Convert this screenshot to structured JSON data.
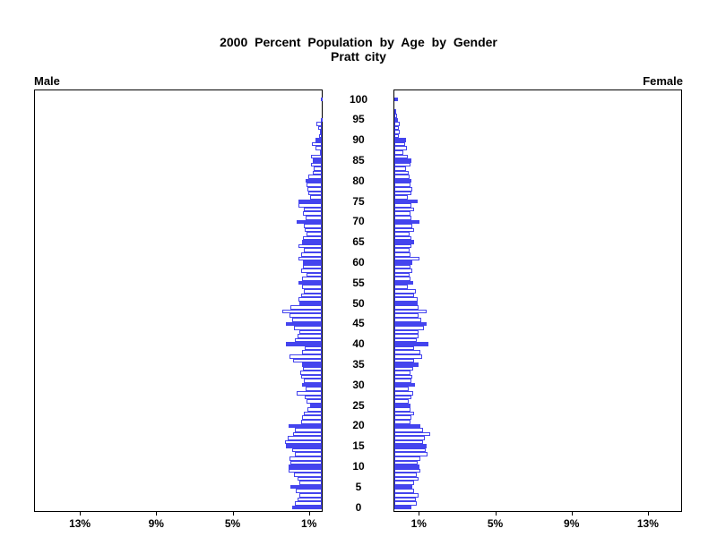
{
  "colors": {
    "bar_outline": "#4444ee",
    "bar_fill_highlight": "#4444ee",
    "bar_fill_regular": "#ffffff",
    "axis": "#000000",
    "text": "#000000",
    "background": "#ffffff"
  },
  "chart_data": {
    "type": "bar",
    "variant": "population-pyramid",
    "title": "2000 Percent Population by Age by Gender",
    "subtitle": "Pratt city",
    "left_panel_label": "Male",
    "right_panel_label": "Female",
    "orientation": "horizontal-mirrored",
    "unit": "% of population",
    "highlight_every_n_years": 5,
    "age_axis": {
      "min": 0,
      "max": 100,
      "tick_labels": [
        "0",
        "5",
        "10",
        "15",
        "20",
        "25",
        "30",
        "35",
        "40",
        "45",
        "50",
        "55",
        "60",
        "65",
        "70",
        "75",
        "80",
        "85",
        "90",
        "95",
        "100"
      ]
    },
    "x_axis": {
      "tick_values": [
        1,
        5,
        9,
        13
      ],
      "left_tick_labels": [
        "13%",
        "9%",
        "5%",
        "1%"
      ],
      "right_tick_labels": [
        "1%",
        "5%",
        "9%",
        "13%"
      ],
      "max_percent": 15,
      "grid": false
    },
    "ages": "index of values arrays = single year of age, 0 through 100",
    "series": [
      {
        "name": "Male",
        "direction": "left",
        "values": [
          1.56,
          1.41,
          1.28,
          1.17,
          1.36,
          1.64,
          1.17,
          1.25,
          1.44,
          1.75,
          1.72,
          1.64,
          1.67,
          1.41,
          1.56,
          1.88,
          1.91,
          1.8,
          1.52,
          1.41,
          1.72,
          1.09,
          1.02,
          0.94,
          0.75,
          0.63,
          0.81,
          0.89,
          1.33,
          0.86,
          1.05,
          0.95,
          1.09,
          1.14,
          0.97,
          1.02,
          1.52,
          1.67,
          1.05,
          0.9,
          1.88,
          1.41,
          1.28,
          1.17,
          1.45,
          1.88,
          1.56,
          1.67,
          2.07,
          1.64,
          1.17,
          1.2,
          1.1,
          0.92,
          1.05,
          1.2,
          1.02,
          0.81,
          1.06,
          1.0,
          1.0,
          1.2,
          1.09,
          0.92,
          1.2,
          1.05,
          1.0,
          0.81,
          0.89,
          0.92,
          1.31,
          0.86,
          1.0,
          0.92,
          1.2,
          1.2,
          0.59,
          0.7,
          0.75,
          0.78,
          0.86,
          0.7,
          0.48,
          0.41,
          0.55,
          0.47,
          0.56,
          0.09,
          0.33,
          0.52,
          0.33,
          0.16,
          0.08,
          0.2,
          0.28,
          0.05,
          0.0,
          0.0,
          0.0,
          0.0,
          0.05
        ]
      },
      {
        "name": "Female",
        "direction": "right",
        "values": [
          0.89,
          1.17,
          1.13,
          1.28,
          1.02,
          0.92,
          1.05,
          1.28,
          1.17,
          1.36,
          1.33,
          1.2,
          1.36,
          1.75,
          1.64,
          1.71,
          1.52,
          1.6,
          1.86,
          1.52,
          1.36,
          0.86,
          0.89,
          1.02,
          0.86,
          0.86,
          0.73,
          0.89,
          0.97,
          0.73,
          1.1,
          0.89,
          0.92,
          0.86,
          0.97,
          1.28,
          1.05,
          1.44,
          1.36,
          1.05,
          1.8,
          1.17,
          1.28,
          1.28,
          1.55,
          1.7,
          1.39,
          1.28,
          1.67,
          1.28,
          1.2,
          1.2,
          1.02,
          1.14,
          0.7,
          0.99,
          0.86,
          0.78,
          0.94,
          0.86,
          0.94,
          1.33,
          0.86,
          0.78,
          0.89,
          1.05,
          0.89,
          0.78,
          1.05,
          0.94,
          1.3,
          0.89,
          0.86,
          1.02,
          0.89,
          1.2,
          0.7,
          0.89,
          0.94,
          0.86,
          0.89,
          0.78,
          0.74,
          0.63,
          0.86,
          0.89,
          0.7,
          0.47,
          0.67,
          0.55,
          0.63,
          0.23,
          0.28,
          0.23,
          0.28,
          0.19,
          0.13,
          0.08,
          0.0,
          0.0,
          0.19
        ]
      }
    ]
  }
}
